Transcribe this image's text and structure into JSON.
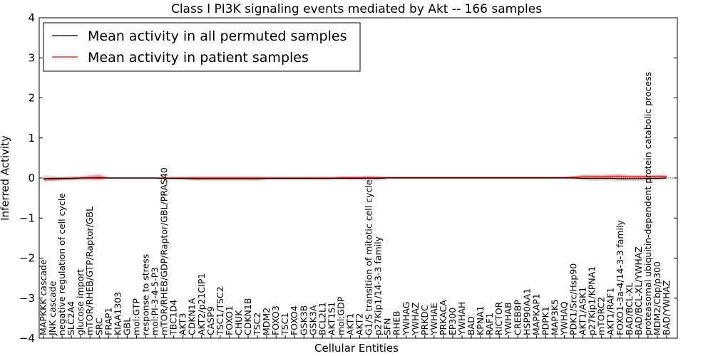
{
  "chart_data": {
    "type": "line",
    "title": "Class I PI3K signaling events mediated by Akt -- 166 samples",
    "xlabel": "Cellular Entities",
    "ylabel": "Inferred Activity",
    "ylim": [
      -4,
      4
    ],
    "yticks": [
      -4,
      -3,
      -2,
      -1,
      0,
      1,
      2,
      3,
      4
    ],
    "legend_location": "top-left",
    "categories": [
      "MAPKKK cascade",
      "JNK cascade",
      "negative regulation of cell cycle",
      "SLC2A4",
      "glucose import",
      "mTOR/RHEB/GTP/Raptor/GBL",
      "SRC",
      "FRAP1",
      "KIAA1303",
      "GBL",
      "mol:GTP",
      "response to stress",
      "mol:PI-3-4-5-P3",
      "mTOR/RHEB/GDP/Raptor/GBL/PRAS40",
      "TBC1D4",
      "AKT3",
      "CDKN1A",
      "AKT2/p21CIP1",
      "CASP9",
      "TSC1/TSC2",
      "FOXO1",
      "CHUK",
      "CDKN1B",
      "TSC2",
      "MDM2",
      "FOXO3",
      "TSC1",
      "FOXO4",
      "GSK3B",
      "GSK3A",
      "BCL2L1",
      "AKT1S1",
      "mol:GDP",
      "AKT1",
      "AKT2",
      "G1/S transition of mitotic cell cycle",
      "p27Kip1/14-3-3 family",
      "SFN",
      "RHEB",
      "YWHAG",
      "YWHAZ",
      "PRKDC",
      "YWHAE",
      "PRKACA",
      "EP300",
      "YWHAH",
      "BAD",
      "KPNA1",
      "RAF1",
      "RICTOR",
      "YWHAB",
      "CREBBP",
      "HSP90AA1",
      "MAPKAP1",
      "PDPK1",
      "MAP3K5",
      "YWHAQ",
      "PDK1/Src/Hsp90",
      "AKT1/ASK1",
      "p27Kip1/KPNA1",
      "mTORC2",
      "AKT1/RAF1",
      "FOXO1-3a-4/14-3-3 family",
      "BAD/BCL-XL",
      "BAD/BCL-XL/YWHAZ",
      "proteasomal ubiquitin-dependent protein catabolic process",
      "MDM2/Cbp/p300",
      "BAD/YWHAZ"
    ],
    "series": [
      {
        "name": "Mean activity in all permuted samples",
        "color": "#000000",
        "band_color": "#c8c8c8",
        "values": [
          -0.02,
          -0.01,
          -0.01,
          -0.01,
          0,
          0,
          0,
          0,
          0,
          0,
          0,
          0,
          0,
          -0.01,
          -0.01,
          -0.01,
          -0.02,
          -0.02,
          -0.02,
          -0.02,
          -0.02,
          -0.02,
          -0.02,
          -0.02,
          -0.01,
          -0.01,
          -0.01,
          -0.01,
          -0.01,
          -0.01,
          -0.01,
          -0.01,
          -0.01,
          -0.01,
          -0.01,
          -0.01,
          -0.01,
          0,
          0,
          0,
          0,
          0,
          0,
          0,
          0,
          0,
          0,
          0,
          0,
          0,
          0,
          0,
          0,
          0,
          0,
          0,
          0,
          0,
          -0.01,
          -0.01,
          -0.01,
          -0.01,
          -0.02,
          -0.02,
          -0.02,
          -0.01,
          -0.01,
          0
        ],
        "band": [
          0.1,
          0.07,
          0.05,
          0.04,
          0.03,
          0.03,
          0.03,
          0.02,
          0.02,
          0.02,
          0.02,
          0.02,
          0.02,
          0.03,
          0.03,
          0.04,
          0.05,
          0.05,
          0.05,
          0.05,
          0.05,
          0.05,
          0.05,
          0.05,
          0.04,
          0.04,
          0.04,
          0.04,
          0.04,
          0.04,
          0.05,
          0.03,
          0.03,
          0.04,
          0.05,
          0.08,
          0.06,
          0.03,
          0.02,
          0.02,
          0.02,
          0.02,
          0.02,
          0.02,
          0.02,
          0.02,
          0.02,
          0.02,
          0.02,
          0.02,
          0.02,
          0.02,
          0.02,
          0.02,
          0.02,
          0.02,
          0.02,
          0.03,
          0.05,
          0.07,
          0.06,
          0.07,
          0.07,
          0.06,
          0.07,
          0.06,
          0.05,
          0.05
        ]
      },
      {
        "name": "Mean activity in patient samples",
        "color": "#ff0000",
        "band_color": "#ff7f7f",
        "values": [
          -0.03,
          -0.03,
          -0.02,
          -0.01,
          0,
          0.01,
          0.02,
          0,
          0,
          0,
          0,
          0,
          0,
          0,
          0,
          0,
          0,
          0,
          0,
          0,
          0,
          0,
          0,
          0,
          0,
          0,
          0,
          0,
          0,
          0,
          0,
          0,
          0.01,
          0.01,
          0.01,
          0.01,
          0.01,
          0.01,
          0.01,
          0.01,
          0.01,
          0.01,
          0.01,
          0.01,
          0.01,
          0.01,
          0.01,
          0.01,
          0.01,
          0.01,
          0.01,
          0.01,
          0.01,
          0.01,
          0.01,
          0.01,
          0.01,
          0.02,
          0.03,
          0.03,
          0.03,
          0.04,
          0.04,
          0.03,
          0.03,
          0.03,
          0.04,
          0.04
        ],
        "band": [
          0.04,
          0.04,
          0.04,
          0.05,
          0.05,
          0.06,
          0.08,
          0.02,
          0.02,
          0.02,
          0.02,
          0.02,
          0.02,
          0.03,
          0.03,
          0.03,
          0.04,
          0.04,
          0.04,
          0.04,
          0.04,
          0.04,
          0.04,
          0.04,
          0.03,
          0.03,
          0.03,
          0.03,
          0.03,
          0.03,
          0.03,
          0.03,
          0.03,
          0.03,
          0.03,
          0.03,
          0.03,
          0.02,
          0.02,
          0.02,
          0.02,
          0.02,
          0.02,
          0.02,
          0.02,
          0.02,
          0.02,
          0.02,
          0.02,
          0.02,
          0.02,
          0.02,
          0.02,
          0.02,
          0.02,
          0.02,
          0.02,
          0.03,
          0.05,
          0.05,
          0.05,
          0.05,
          0.06,
          0.04,
          0.04,
          0.04,
          0.04,
          0.04
        ]
      }
    ]
  }
}
